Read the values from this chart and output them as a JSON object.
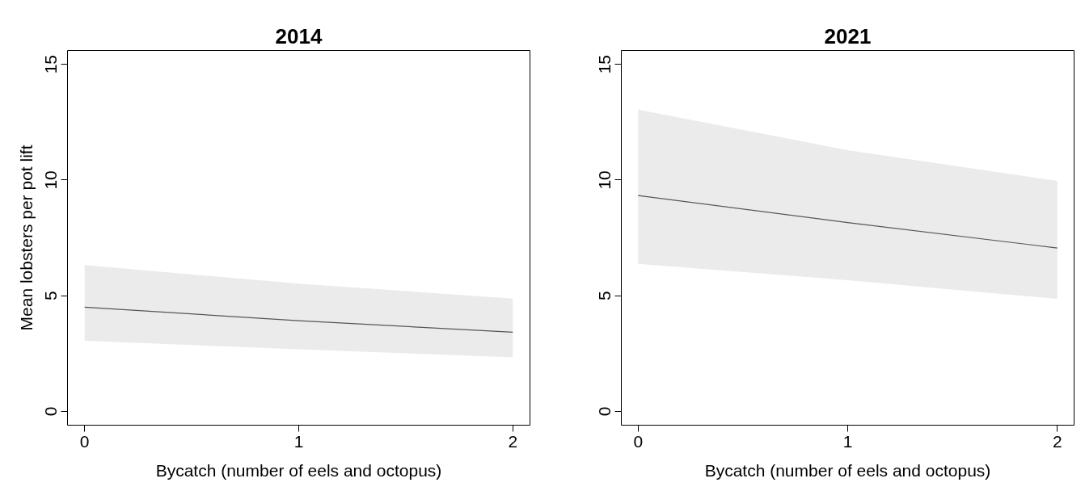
{
  "chart_data": [
    {
      "type": "line",
      "title": "2014",
      "xlabel": "Bycatch (number of eels and octopus)",
      "ylabel": "Mean lobsters per pot lift",
      "x": [
        0,
        1,
        2
      ],
      "series": [
        {
          "color": "#555555",
          "values": [
            4.5,
            3.92,
            3.42
          ],
          "lower": [
            3.05,
            2.68,
            2.33
          ],
          "upper": [
            6.32,
            5.52,
            4.87
          ]
        }
      ],
      "xlim": [
        -0.08,
        2.08
      ],
      "ylim": [
        -0.6,
        15.6
      ],
      "xticks": [
        0,
        1,
        2
      ],
      "yticks": [
        0,
        5,
        10,
        15
      ]
    },
    {
      "type": "line",
      "title": "2021",
      "xlabel": "Bycatch (number of eels and octopus)",
      "x": [
        0,
        1,
        2
      ],
      "series": [
        {
          "color": "#555555",
          "values": [
            9.33,
            8.16,
            7.06
          ],
          "lower": [
            6.37,
            5.67,
            4.86
          ],
          "upper": [
            13.04,
            11.29,
            9.96
          ]
        }
      ],
      "xlim": [
        -0.08,
        2.08
      ],
      "ylim": [
        -0.6,
        15.6
      ],
      "xticks": [
        0,
        1,
        2
      ],
      "yticks": [
        0,
        5,
        10,
        15
      ]
    }
  ]
}
